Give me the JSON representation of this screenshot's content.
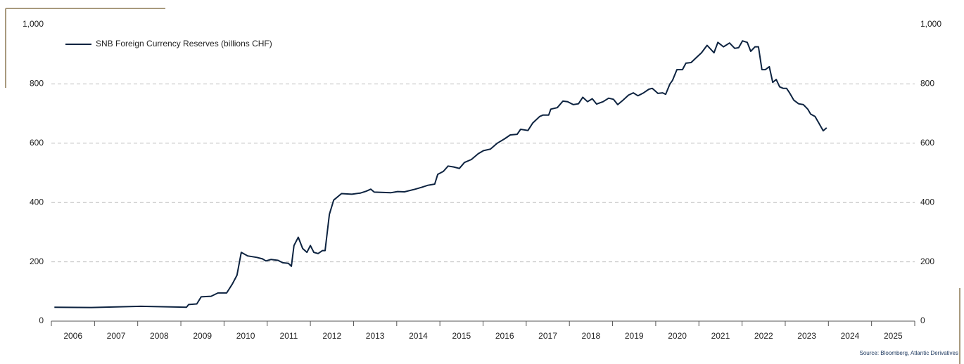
{
  "chart_data": {
    "type": "line",
    "series": [
      {
        "name": "SNB Foreign Currency Reserves (billions CHF)",
        "color": "#0d2340",
        "x": [
          2006.07,
          2006.93,
          2008.07,
          2009.13,
          2009.18,
          2009.37,
          2009.47,
          2009.7,
          2009.86,
          2010.06,
          2010.19,
          2010.3,
          2010.4,
          2010.55,
          2010.76,
          2010.89,
          2010.97,
          2011.09,
          2011.25,
          2011.36,
          2011.49,
          2011.56,
          2011.62,
          2011.72,
          2011.82,
          2011.92,
          2012.0,
          2012.08,
          2012.18,
          2012.28,
          2012.34,
          2012.44,
          2012.54,
          2012.72,
          2012.96,
          2013.16,
          2013.29,
          2013.4,
          2013.48,
          2013.86,
          2014.02,
          2014.18,
          2014.43,
          2014.59,
          2014.72,
          2014.88,
          2014.95,
          2015.08,
          2015.19,
          2015.32,
          2015.45,
          2015.57,
          2015.73,
          2015.89,
          2016.01,
          2016.17,
          2016.33,
          2016.5,
          2016.63,
          2016.79,
          2016.87,
          2017.04,
          2017.15,
          2017.31,
          2017.39,
          2017.52,
          2017.57,
          2017.72,
          2017.85,
          2017.96,
          2018.09,
          2018.21,
          2018.31,
          2018.42,
          2018.53,
          2018.63,
          2018.78,
          2018.91,
          2019.02,
          2019.12,
          2019.24,
          2019.37,
          2019.48,
          2019.59,
          2019.72,
          2019.84,
          2019.92,
          2020.05,
          2020.16,
          2020.23,
          2020.33,
          2020.39,
          2020.49,
          2020.62,
          2020.7,
          2020.82,
          2020.95,
          2021.06,
          2021.19,
          2021.35,
          2021.44,
          2021.57,
          2021.71,
          2021.83,
          2021.92,
          2022.01,
          2022.12,
          2022.2,
          2022.3,
          2022.38,
          2022.46,
          2022.54,
          2022.63,
          2022.71,
          2022.79,
          2022.87,
          2022.95,
          2023.03,
          2023.1,
          2023.2,
          2023.31,
          2023.42,
          2023.52,
          2023.59,
          2023.69,
          2023.77,
          2023.88,
          2023.96
        ],
        "values": [
          47,
          46,
          50,
          47,
          56,
          58,
          82,
          84,
          95,
          95,
          125,
          155,
          232,
          220,
          215,
          210,
          203,
          208,
          205,
          197,
          195,
          185,
          255,
          283,
          245,
          232,
          255,
          232,
          228,
          238,
          238,
          360,
          408,
          430,
          428,
          432,
          438,
          445,
          435,
          433,
          437,
          436,
          445,
          452,
          458,
          462,
          495,
          505,
          523,
          520,
          515,
          535,
          545,
          565,
          575,
          580,
          600,
          615,
          628,
          630,
          647,
          643,
          668,
          690,
          695,
          695,
          715,
          720,
          742,
          740,
          730,
          733,
          755,
          740,
          750,
          732,
          740,
          752,
          748,
          730,
          745,
          762,
          770,
          760,
          770,
          782,
          785,
          768,
          770,
          765,
          800,
          812,
          848,
          848,
          870,
          872,
          890,
          905,
          930,
          905,
          940,
          925,
          938,
          920,
          922,
          945,
          940,
          910,
          925,
          925,
          848,
          848,
          858,
          805,
          815,
          790,
          785,
          785,
          770,
          745,
          733,
          730,
          715,
          698,
          690,
          670,
          642,
          652
        ]
      }
    ],
    "xlim": [
      2006,
      2026
    ],
    "xticks": [
      2006,
      2007,
      2008,
      2009,
      2010,
      2011,
      2012,
      2013,
      2014,
      2015,
      2016,
      2017,
      2018,
      2019,
      2020,
      2021,
      2022,
      2023,
      2024,
      2025
    ],
    "ylim": [
      0,
      1000
    ],
    "yticks": [
      0,
      200,
      400,
      600,
      800,
      {
        "value": 1000,
        "label": "1,000"
      }
    ],
    "grid": true,
    "legend": "top-left",
    "source": "Source: Bloomberg, Atlantic Derivatives"
  }
}
